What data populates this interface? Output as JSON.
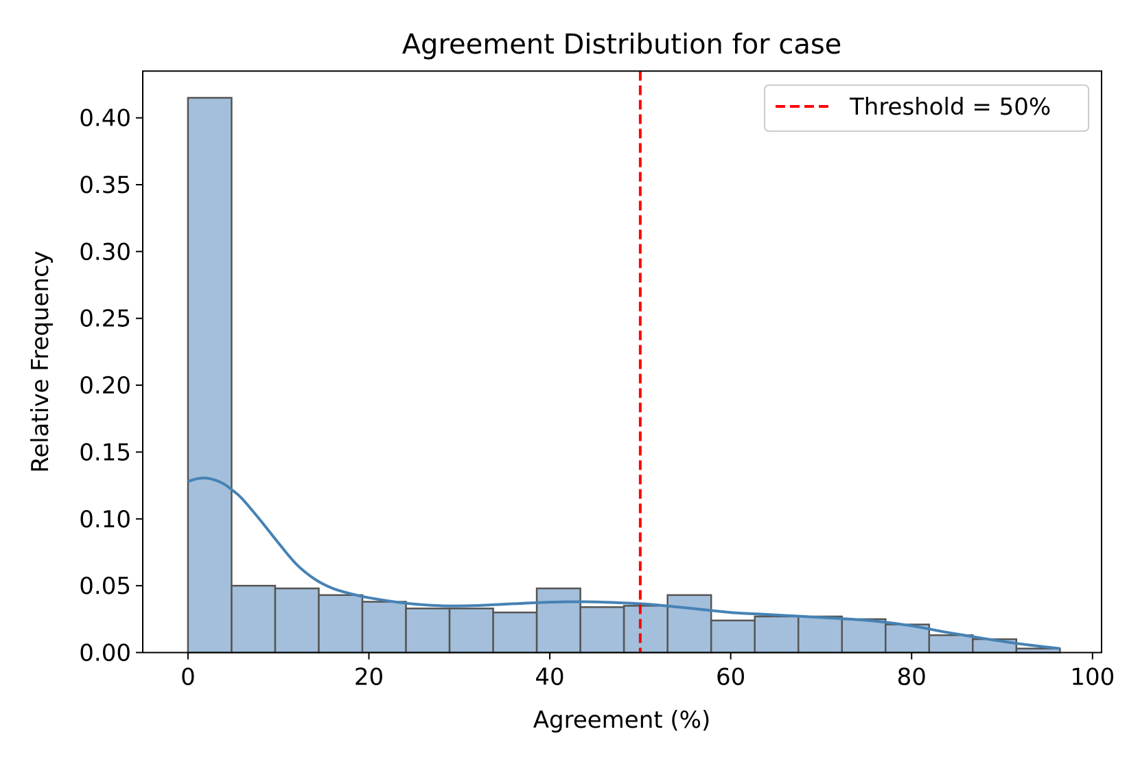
{
  "chart_data": {
    "type": "bar",
    "title": "Agreement Distribution for case",
    "xlabel": "Agreement (%)",
    "ylabel": "Relative Frequency",
    "xlim": [
      -5,
      101
    ],
    "ylim": [
      0,
      0.435
    ],
    "xticks": [
      0,
      20,
      40,
      60,
      80,
      100
    ],
    "xtick_labels": [
      "0",
      "20",
      "40",
      "60",
      "80",
      "100"
    ],
    "yticks": [
      0,
      0.05,
      0.1,
      0.15,
      0.2,
      0.25,
      0.3,
      0.35,
      0.4
    ],
    "ytick_labels": [
      "0.00",
      "0.05",
      "0.10",
      "0.15",
      "0.20",
      "0.25",
      "0.30",
      "0.35",
      "0.40"
    ],
    "bins": {
      "edges": [
        0,
        4.82,
        9.64,
        14.46,
        19.28,
        24.1,
        28.92,
        33.74,
        38.56,
        43.38,
        48.2,
        53.02,
        57.84,
        62.66,
        67.48,
        72.3,
        77.12,
        81.94,
        86.76,
        91.58,
        96.4
      ],
      "values": [
        0.415,
        0.05,
        0.048,
        0.043,
        0.038,
        0.033,
        0.033,
        0.03,
        0.048,
        0.034,
        0.035,
        0.043,
        0.024,
        0.027,
        0.027,
        0.025,
        0.021,
        0.013,
        0.01,
        0.003
      ]
    },
    "kde": {
      "x": [
        0,
        1,
        2,
        3,
        4,
        5,
        6,
        8,
        10,
        12,
        14,
        16,
        18,
        20,
        24,
        28,
        32,
        36,
        40,
        44,
        48,
        50,
        52,
        56,
        60,
        64,
        68,
        72,
        76,
        80,
        84,
        88,
        92,
        96.4
      ],
      "y": [
        0.128,
        0.13,
        0.1305,
        0.129,
        0.126,
        0.121,
        0.115,
        0.099,
        0.082,
        0.066,
        0.055,
        0.048,
        0.044,
        0.041,
        0.037,
        0.035,
        0.0352,
        0.0365,
        0.0377,
        0.038,
        0.0372,
        0.0365,
        0.0355,
        0.0328,
        0.03,
        0.0285,
        0.027,
        0.0255,
        0.0235,
        0.02,
        0.015,
        0.0105,
        0.0065,
        0.003
      ]
    },
    "threshold": {
      "value": 50,
      "label": "Threshold = 50%"
    },
    "legend_position": "top-right",
    "colors": {
      "bar_fill": "#a3bfdb",
      "bar_edge": "#555555",
      "kde_line": "#4682b4",
      "threshold": "#ff0000"
    },
    "grid": false
  }
}
